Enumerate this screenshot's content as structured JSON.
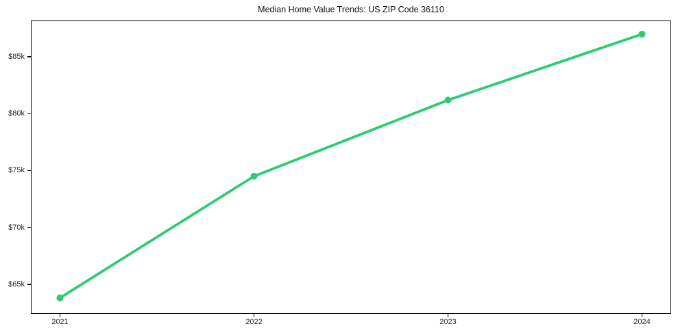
{
  "chart_data": {
    "type": "line",
    "title": "Median Home Value Trends: US ZIP Code 36110",
    "x": [
      2021,
      2022,
      2023,
      2024
    ],
    "series": [
      {
        "name": "Median Home Value",
        "values": [
          63.8,
          74.5,
          81.2,
          87.0
        ]
      }
    ],
    "value_unit": "$k",
    "xticks": {
      "values": [
        2021,
        2022,
        2023,
        2024
      ],
      "labels": [
        "2021",
        "2022",
        "2023",
        "2024"
      ]
    },
    "yticks": {
      "values": [
        65,
        70,
        75,
        80,
        85
      ],
      "labels": [
        "$65k",
        "$70k",
        "$75k",
        "$80k",
        "$85k"
      ]
    },
    "xlim": [
      2020.85,
      2024.15
    ],
    "ylim": [
      62.4,
      88.2
    ],
    "grid": false,
    "legend": "none",
    "line_color": "#2ecc71",
    "background_color": "#ffffff",
    "axis_color": "#000000",
    "tick_text_color": "#262626"
  }
}
